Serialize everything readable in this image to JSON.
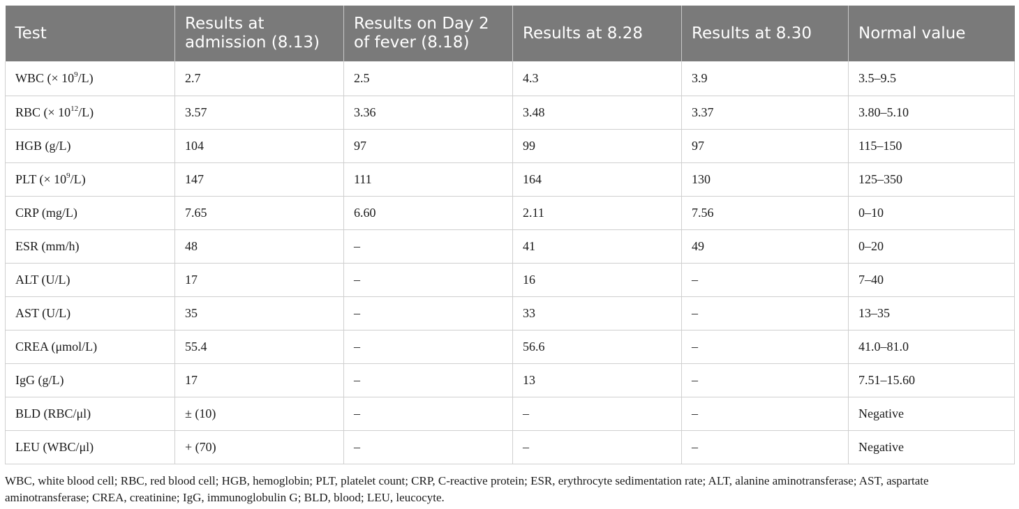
{
  "table": {
    "headers": [
      "Test",
      "Results at admission (8.13)",
      "Results on Day 2 of fever (8.18)",
      "Results at 8.28",
      "Results at 8.30",
      "Normal value"
    ],
    "rows": [
      {
        "test_pre": "WBC (× 10",
        "test_sup": "9",
        "test_post": "/L)",
        "values": [
          "2.7",
          "2.5",
          "4.3",
          "3.9",
          "3.5–9.5"
        ]
      },
      {
        "test_pre": "RBC (× 10",
        "test_sup": "12",
        "test_post": "/L)",
        "values": [
          "3.57",
          "3.36",
          "3.48",
          "3.37",
          "3.80–5.10"
        ]
      },
      {
        "test_pre": "HGB (g/L)",
        "test_sup": "",
        "test_post": "",
        "values": [
          "104",
          "97",
          "99",
          "97",
          "115–150"
        ]
      },
      {
        "test_pre": "PLT (× 10",
        "test_sup": "9",
        "test_post": "/L)",
        "values": [
          "147",
          "111",
          "164",
          "130",
          "125–350"
        ]
      },
      {
        "test_pre": "CRP (mg/L)",
        "test_sup": "",
        "test_post": "",
        "values": [
          "7.65",
          "6.60",
          "2.11",
          "7.56",
          "0–10"
        ]
      },
      {
        "test_pre": "ESR (mm/h)",
        "test_sup": "",
        "test_post": "",
        "values": [
          "48",
          "–",
          "41",
          "49",
          "0–20"
        ]
      },
      {
        "test_pre": "ALT (U/L)",
        "test_sup": "",
        "test_post": "",
        "values": [
          "17",
          "–",
          "16",
          "–",
          "7–40"
        ]
      },
      {
        "test_pre": "AST (U/L)",
        "test_sup": "",
        "test_post": "",
        "values": [
          "35",
          "–",
          "33",
          "–",
          "13–35"
        ]
      },
      {
        "test_pre": "CREA (μmol/L)",
        "test_sup": "",
        "test_post": "",
        "values": [
          "55.4",
          "–",
          "56.6",
          "–",
          "41.0–81.0"
        ]
      },
      {
        "test_pre": "IgG (g/L)",
        "test_sup": "",
        "test_post": "",
        "values": [
          "17",
          "–",
          "13",
          "–",
          "7.51–15.60"
        ]
      },
      {
        "test_pre": "BLD (RBC/μl)",
        "test_sup": "",
        "test_post": "",
        "values": [
          "± (10)",
          "–",
          "–",
          "–",
          "Negative"
        ]
      },
      {
        "test_pre": "LEU (WBC/μl)",
        "test_sup": "",
        "test_post": "",
        "values": [
          "+ (70)",
          "–",
          "–",
          "–",
          "Negative"
        ]
      }
    ]
  },
  "footnote": "WBC, white blood cell; RBC, red blood cell; HGB, hemoglobin; PLT, platelet count; CRP, C-reactive protein; ESR, erythrocyte sedimentation rate; ALT, alanine aminotransferase; AST, aspartate aminotransferase; CREA, creatinine; IgG, immunoglobulin G; BLD, blood; LEU, leucocyte.",
  "colors": {
    "header_bg": "#7a7a7a",
    "header_text": "#ffffff",
    "grid": "#cfcfcf",
    "text": "#1a1a1a"
  }
}
